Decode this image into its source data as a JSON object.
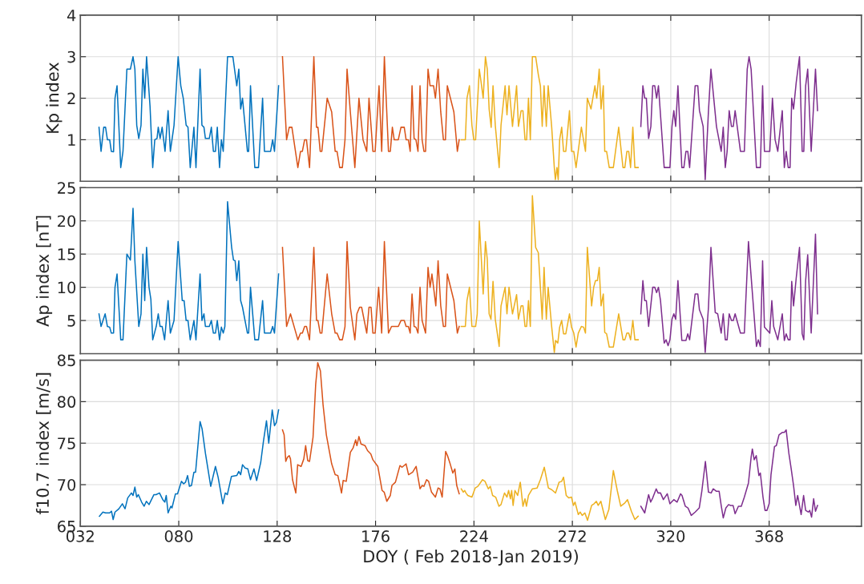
{
  "chart_data": [
    {
      "type": "line",
      "ylabel": "Kp index",
      "xlim": [
        32,
        413
      ],
      "xticks": [
        {
          "value": 80,
          "label": null
        },
        {
          "value": 128,
          "label": null
        },
        {
          "value": 176,
          "label": null
        },
        {
          "value": 224,
          "label": null
        },
        {
          "value": 272,
          "label": null
        },
        {
          "value": 320,
          "label": null
        },
        {
          "value": 368,
          "label": null
        }
      ],
      "ylim": [
        0,
        4
      ],
      "yticks": [
        1,
        2,
        3,
        4
      ],
      "grid": true,
      "tick_labels": "y",
      "series": [
        {
          "color": "#0072bd",
          "x": [
            41.1,
            42.1,
            43.4,
            44.3,
            45.2,
            46.3,
            47.1,
            48.2,
            48.9,
            49.9,
            51.7,
            52.8,
            54.7,
            56.4,
            57.7,
            58.6,
            59.5,
            60.5,
            61.6,
            62.5,
            63.4,
            64.3,
            66.0,
            67.3,
            68.3,
            69.4,
            70.0,
            70.9,
            71.9,
            73.3,
            74.8,
            75.9,
            77.7,
            79.7,
            81.0,
            82.2,
            83.6,
            84.5,
            85.6,
            87.4,
            88.4,
            90.4,
            91.3,
            92.3,
            93.0,
            94.9,
            95.9,
            96.9,
            97.9,
            98.8,
            99.9,
            100.8,
            101.7,
            103.8,
            106.4,
            108.3,
            109.3,
            110.2,
            111.1,
            113.5,
            114.1,
            115.0,
            117.1,
            118.9,
            120.9,
            121.8,
            124.8,
            125.8,
            126.7,
            128.7
          ],
          "values": [
            1.3,
            0.72,
            1.3,
            1.3,
            1.0,
            1.0,
            0.72,
            0.71,
            2.0,
            2.3,
            0.33,
            0.72,
            2.7,
            2.7,
            3.0,
            2.7,
            1.35,
            1.03,
            1.35,
            2.7,
            2.0,
            3.0,
            1.8,
            0.33,
            1.0,
            1.03,
            1.3,
            1.03,
            1.3,
            0.72,
            1.7,
            0.72,
            1.35,
            3.0,
            2.3,
            2.0,
            1.35,
            1.3,
            0.33,
            1.3,
            0.33,
            2.7,
            1.35,
            1.3,
            1.03,
            1.03,
            1.3,
            0.72,
            0.72,
            1.3,
            0.33,
            1.0,
            0.72,
            3.0,
            3.0,
            2.3,
            2.7,
            1.74,
            2.0,
            0.72,
            0.72,
            2.3,
            0.33,
            0.33,
            2.0,
            0.72,
            0.72,
            1.0,
            0.72,
            2.3
          ]
        },
        {
          "color": "#d95319",
          "x": [
            130.6,
            132.6,
            133.9,
            135.2,
            138.1,
            139.4,
            140.3,
            141.4,
            142.3,
            143.8,
            145.9,
            147.2,
            147.9,
            149.0,
            149.8,
            152.4,
            154.6,
            156.3,
            157.2,
            158.5,
            159.8,
            161.1,
            162.1,
            163.7,
            165.9,
            167.9,
            169.9,
            171.7,
            172.8,
            174.7,
            175.8,
            177.7,
            179.0,
            180.3,
            182.3,
            183.2,
            184.2,
            185.1,
            187.1,
            188.4,
            190.0,
            190.9,
            192.0,
            192.9,
            193.8,
            194.8,
            195.7,
            196.7,
            197.7,
            198.7,
            199.6,
            200.4,
            201.6,
            202.6,
            204.3,
            205.2,
            206.5,
            207.8,
            209.1,
            210.1,
            211.0,
            214.2,
            215.9,
            216.8
          ],
          "values": [
            3.0,
            1.0,
            1.3,
            1.3,
            0.33,
            0.72,
            0.72,
            1.0,
            1.0,
            0.33,
            3.0,
            1.3,
            1.3,
            0.72,
            0.72,
            2.0,
            1.67,
            0.72,
            0.72,
            0.33,
            0.33,
            1.0,
            2.7,
            1.67,
            0.33,
            2.0,
            1.0,
            0.72,
            2.0,
            0.72,
            0.72,
            2.3,
            0.72,
            3.0,
            0.72,
            0.72,
            1.3,
            1.0,
            1.0,
            1.3,
            1.3,
            1.0,
            1.0,
            0.72,
            2.3,
            1.03,
            1.0,
            0.72,
            2.3,
            1.0,
            0.72,
            0.72,
            2.7,
            2.3,
            2.3,
            2.0,
            2.7,
            1.67,
            1.0,
            1.0,
            2.3,
            1.67,
            0.72,
            1.0
          ]
        },
        {
          "color": "#edb120",
          "x": [
            217.8,
            219.8,
            220.6,
            221.8,
            223.0,
            223.9,
            224.8,
            226.6,
            227.5,
            228.5,
            229.6,
            230.5,
            231.4,
            232.4,
            233.3,
            234.4,
            236.3,
            237.2,
            239.2,
            240.1,
            241.1,
            242.8,
            244.8,
            245.7,
            247.0,
            247.9,
            248.9,
            249.7,
            250.6,
            251.5,
            252.5,
            254.1,
            255.4,
            256.4,
            257.3,
            258.2,
            259.3,
            260.2,
            261.9,
            263.2,
            263.7,
            264.5,
            265.1,
            265.8,
            266.8,
            267.7,
            268.8,
            270.6,
            271.6,
            272.7,
            273.8,
            276.4,
            278.4,
            279.3,
            281.1,
            283.0,
            283.9,
            285.1,
            286.0,
            287.1,
            287.8,
            288.7,
            290.0,
            292.0,
            294.6,
            296.7,
            297.6,
            298.6,
            299.5,
            300.4,
            301.5,
            302.5,
            304.1
          ],
          "values": [
            1.0,
            1.0,
            2.0,
            2.3,
            1.35,
            1.0,
            1.0,
            2.7,
            2.38,
            2.0,
            3.0,
            2.7,
            1.74,
            1.3,
            2.3,
            1.35,
            0.33,
            1.35,
            2.3,
            1.6,
            2.3,
            1.32,
            2.3,
            1.32,
            1.7,
            1.7,
            1.0,
            1.0,
            2.0,
            1.0,
            3.0,
            3.0,
            2.57,
            2.3,
            1.32,
            2.3,
            1.32,
            2.3,
            1.32,
            0.33,
            0.04,
            0.33,
            0.04,
            1.0,
            1.3,
            0.72,
            0.72,
            1.7,
            0.72,
            0.72,
            0.33,
            1.3,
            0.72,
            2.0,
            1.74,
            2.3,
            2.0,
            2.7,
            1.74,
            2.3,
            0.72,
            0.72,
            0.33,
            0.33,
            1.3,
            0.33,
            0.33,
            0.72,
            0.72,
            0.33,
            1.3,
            0.33,
            0.33
          ]
        },
        {
          "color": "#7e2f8e",
          "x": [
            305.4,
            306.4,
            307.3,
            308.1,
            309.2,
            310.3,
            311.2,
            312.2,
            313.1,
            314.0,
            316.8,
            319.6,
            320.6,
            321.5,
            322.4,
            323.5,
            325.4,
            326.4,
            327.4,
            328.3,
            329.2,
            331.9,
            333.2,
            334.0,
            335.8,
            336.8,
            338.4,
            339.6,
            342.3,
            344.6,
            345.6,
            346.6,
            347.5,
            348.5,
            349.6,
            350.5,
            351.4,
            354.0,
            355.9,
            357.3,
            358.2,
            359.2,
            361.8,
            363.7,
            364.8,
            365.7,
            368.3,
            369.6,
            370.9,
            372.2,
            374.4,
            375.4,
            376.3,
            377.3,
            378.2,
            379.0,
            379.9,
            381.2,
            382.8,
            384.1,
            384.9,
            385.8,
            386.8,
            388.5,
            390.6,
            391.6
          ],
          "values": [
            1.32,
            2.3,
            2.0,
            2.0,
            1.03,
            1.32,
            2.3,
            2.3,
            2.0,
            2.3,
            0.33,
            0.33,
            1.32,
            1.7,
            1.32,
            2.3,
            0.33,
            0.33,
            0.72,
            0.72,
            0.33,
            2.3,
            2.3,
            1.7,
            1.32,
            0.04,
            1.7,
            2.7,
            1.32,
            0.72,
            1.3,
            0.33,
            0.72,
            1.7,
            1.32,
            1.32,
            1.7,
            0.72,
            0.72,
            2.7,
            3.0,
            2.7,
            0.33,
            0.33,
            2.3,
            0.72,
            0.72,
            2.0,
            1.0,
            0.72,
            1.7,
            0.33,
            0.72,
            0.33,
            0.33,
            2.0,
            1.74,
            2.38,
            3.0,
            0.72,
            0.72,
            2.3,
            2.7,
            0.72,
            2.7,
            1.7
          ]
        }
      ]
    },
    {
      "type": "line",
      "ylabel": "Ap index [nT]",
      "xlim": [
        32,
        413
      ],
      "xticks": [
        {
          "value": 80,
          "label": null
        },
        {
          "value": 128,
          "label": null
        },
        {
          "value": 176,
          "label": null
        },
        {
          "value": 224,
          "label": null
        },
        {
          "value": 272,
          "label": null
        },
        {
          "value": 320,
          "label": null
        },
        {
          "value": 368,
          "label": null
        }
      ],
      "ylim": [
        0,
        25
      ],
      "yticks": [
        5,
        10,
        15,
        20,
        25
      ],
      "grid": true,
      "tick_labels": "y",
      "series": [
        {
          "color": "#0072bd",
          "x": [
            41.1,
            42.1,
            44.1,
            45.2,
            46.3,
            47.1,
            48.2,
            48.9,
            49.9,
            51.7,
            52.8,
            54.7,
            56.4,
            57.7,
            58.6,
            60.5,
            61.6,
            62.5,
            63.4,
            64.3,
            65.5,
            66.4,
            67.3,
            69.0,
            70.0,
            70.9,
            71.9,
            73.1,
            74.8,
            75.9,
            77.7,
            79.7,
            81.7,
            82.6,
            83.6,
            84.5,
            85.6,
            87.4,
            88.4,
            90.4,
            91.3,
            92.3,
            93.0,
            94.9,
            95.9,
            96.9,
            97.9,
            98.8,
            99.9,
            100.8,
            101.7,
            102.5,
            103.8,
            105.8,
            106.7,
            107.5,
            108.3,
            109.3,
            110.2,
            111.1,
            113.5,
            114.1,
            115.0,
            117.1,
            118.9,
            120.9,
            121.8,
            124.8,
            125.8,
            126.7,
            128.7
          ],
          "values": [
            6.0,
            4.1,
            6.0,
            4.1,
            4.0,
            3.1,
            3.1,
            10.0,
            12.0,
            2.1,
            2.1,
            15.0,
            14.1,
            21.9,
            14.0,
            4.1,
            6.0,
            15.0,
            8.0,
            16.0,
            10.0,
            8.2,
            2.1,
            4.1,
            6.0,
            4.1,
            4.1,
            2.1,
            8.0,
            3.1,
            5.0,
            16.9,
            8.0,
            8.0,
            5.0,
            5.0,
            2.1,
            5.0,
            2.1,
            12.0,
            5.0,
            6.0,
            4.1,
            4.1,
            5.0,
            3.1,
            3.1,
            5.0,
            2.1,
            4.0,
            3.1,
            4.1,
            22.9,
            16.0,
            14.1,
            14.0,
            11.0,
            14.0,
            8.0,
            7.0,
            3.1,
            3.1,
            10.0,
            2.1,
            2.1,
            8.0,
            3.1,
            3.1,
            4.1,
            3.1,
            12.0
          ]
        },
        {
          "color": "#d95319",
          "x": [
            130.6,
            132.6,
            134.5,
            138.1,
            139.4,
            140.3,
            141.4,
            142.3,
            143.8,
            145.9,
            147.2,
            147.9,
            149.0,
            149.8,
            152.4,
            154.6,
            156.3,
            157.2,
            158.5,
            159.8,
            161.1,
            162.1,
            163.7,
            165.9,
            166.9,
            168.2,
            169.2,
            171.7,
            172.8,
            173.8,
            174.7,
            175.8,
            177.5,
            179.0,
            180.3,
            182.3,
            183.8,
            187.1,
            188.4,
            190.0,
            190.9,
            192.0,
            192.9,
            193.8,
            194.8,
            195.7,
            196.7,
            197.7,
            198.7,
            200.4,
            201.6,
            202.6,
            203.5,
            204.3,
            205.4,
            206.5,
            207.8,
            209.1,
            210.1,
            211.0,
            214.2,
            215.9,
            216.8
          ],
          "values": [
            16.0,
            4.1,
            6.0,
            2.1,
            3.1,
            3.1,
            4.1,
            4.1,
            2.1,
            16.0,
            5.0,
            5.0,
            3.1,
            3.1,
            12.0,
            6.0,
            3.1,
            3.1,
            2.1,
            2.1,
            4.1,
            16.9,
            7.0,
            2.1,
            6.0,
            7.0,
            7.0,
            3.1,
            7.0,
            7.0,
            3.1,
            3.1,
            10.0,
            3.1,
            16.9,
            3.1,
            4.1,
            4.1,
            5.0,
            5.0,
            4.1,
            4.1,
            3.1,
            9.0,
            4.1,
            4.0,
            3.1,
            10.0,
            5.0,
            3.1,
            13.0,
            10.0,
            12.0,
            10.0,
            7.2,
            14.0,
            7.2,
            4.1,
            4.1,
            12.0,
            8.0,
            3.1,
            4.1
          ]
        },
        {
          "color": "#edb120",
          "x": [
            217.8,
            219.8,
            220.6,
            221.8,
            223.0,
            224.8,
            225.6,
            226.6,
            228.5,
            229.6,
            230.5,
            231.4,
            232.3,
            233.3,
            234.4,
            236.3,
            237.2,
            239.2,
            240.1,
            241.1,
            242.8,
            244.8,
            245.7,
            247.0,
            247.9,
            248.9,
            249.7,
            250.6,
            251.5,
            252.5,
            254.1,
            255.4,
            256.4,
            257.3,
            258.2,
            259.3,
            260.2,
            261.9,
            263.2,
            263.8,
            264.9,
            265.8,
            266.8,
            267.7,
            268.8,
            270.6,
            271.6,
            272.7,
            273.8,
            274.9,
            276.4,
            277.5,
            278.4,
            279.3,
            281.4,
            282.4,
            283.3,
            284.2,
            285.1,
            286.0,
            287.1,
            287.8,
            288.7,
            290.0,
            292.0,
            294.6,
            296.7,
            297.6,
            298.6,
            299.5,
            300.4,
            301.5,
            302.5,
            304.1
          ],
          "values": [
            4.1,
            4.1,
            8.0,
            10.0,
            4.1,
            4.1,
            6.0,
            20.0,
            9.0,
            16.9,
            14.2,
            6.0,
            5.2,
            10.9,
            5.2,
            1.1,
            7.2,
            10.0,
            6.0,
            10.0,
            6.0,
            8.9,
            5.2,
            7.2,
            7.2,
            4.1,
            4.1,
            8.0,
            4.1,
            23.8,
            16.0,
            15.2,
            10.0,
            5.2,
            13.0,
            5.2,
            10.0,
            4.1,
            0.2,
            2.0,
            1.6,
            4.0,
            5.0,
            3.0,
            3.0,
            6.0,
            4.0,
            3.1,
            1.0,
            3.1,
            4.1,
            4.0,
            3.1,
            16.0,
            7.2,
            10.0,
            11.0,
            11.0,
            13.0,
            7.2,
            9.0,
            3.2,
            3.0,
            1.0,
            1.0,
            6.0,
            2.1,
            2.1,
            3.1,
            3.1,
            2.1,
            5.0,
            2.1,
            2.1
          ]
        },
        {
          "color": "#7e2f8e",
          "x": [
            305.4,
            306.4,
            307.3,
            308.1,
            309.2,
            311.2,
            312.2,
            313.1,
            314.0,
            315.0,
            316.8,
            317.7,
            318.7,
            319.6,
            320.6,
            321.5,
            322.4,
            323.5,
            325.4,
            327.4,
            328.3,
            329.2,
            331.9,
            333.2,
            334.0,
            335.8,
            336.8,
            338.4,
            339.6,
            341.7,
            342.9,
            344.6,
            345.6,
            346.6,
            347.5,
            348.5,
            349.6,
            350.5,
            351.4,
            354.0,
            355.9,
            357.9,
            361.8,
            362.7,
            363.7,
            364.8,
            365.7,
            368.3,
            369.3,
            370.2,
            372.2,
            374.4,
            375.4,
            376.3,
            377.3,
            378.2,
            379.0,
            379.9,
            381.2,
            382.8,
            384.1,
            384.9,
            385.8,
            386.8,
            388.5,
            390.6,
            391.6
          ],
          "values": [
            6.0,
            11.0,
            8.0,
            8.0,
            4.1,
            10.0,
            10.0,
            9.2,
            10.0,
            8.0,
            1.6,
            2.1,
            1.2,
            2.1,
            5.2,
            6.0,
            5.2,
            11.0,
            2.0,
            2.0,
            3.0,
            2.1,
            9.0,
            9.0,
            6.6,
            5.2,
            0.2,
            7.0,
            16.0,
            6.2,
            6.0,
            3.1,
            6.0,
            2.1,
            2.1,
            6.0,
            5.0,
            5.0,
            6.0,
            3.1,
            3.1,
            16.9,
            1.1,
            2.1,
            1.1,
            14.0,
            4.0,
            3.1,
            8.0,
            4.1,
            2.1,
            6.0,
            2.0,
            3.0,
            2.1,
            2.1,
            10.9,
            7.2,
            11.4,
            16.0,
            3.0,
            2.1,
            11.0,
            14.9,
            3.1,
            18.0,
            6.0
          ]
        }
      ]
    },
    {
      "type": "line",
      "ylabel": "f10.7 index [m/s]",
      "xlabel": "DOY ( Feb 2018-Jan 2019)",
      "xlim": [
        32,
        413
      ],
      "xticks": [
        {
          "value": 32,
          "label": "032"
        },
        {
          "value": 80,
          "label": "080"
        },
        128,
        176,
        224,
        272,
        320,
        368
      ],
      "ylim": [
        65,
        85
      ],
      "yticks": [
        65,
        70,
        75,
        80,
        85
      ],
      "grid": true,
      "series": [
        {
          "color": "#0072bd",
          "x": [
            41.3,
            43.0,
            44.3,
            46.3,
            47.2,
            48.0,
            48.9,
            50.8,
            52.5,
            53.8,
            55.1,
            56.9,
            57.7,
            58.6,
            59.5,
            60.3,
            61.9,
            63.1,
            64.2,
            65.5,
            67.9,
            68.9,
            70.6,
            72.2,
            73.2,
            73.9,
            74.8,
            76.1,
            76.7,
            78.4,
            79.4,
            81.3,
            82.4,
            83.3,
            84.3,
            85.2,
            86.2,
            87.4,
            88.2,
            90.4,
            91.4,
            93.0,
            95.6,
            97.9,
            99.2,
            101.5,
            102.7,
            103.7,
            105.7,
            108.3,
            109.3,
            110.2,
            111.1,
            112.4,
            113.7,
            115.0,
            116.7,
            118.0,
            120.0,
            121.3,
            122.8,
            123.9,
            125.6,
            126.7,
            127.6,
            128.7
          ],
          "values": [
            66.2,
            66.7,
            66.6,
            66.6,
            66.8,
            65.8,
            66.7,
            67.1,
            67.7,
            67.1,
            68.4,
            69.0,
            68.7,
            69.7,
            68.5,
            68.8,
            67.9,
            67.4,
            68.0,
            67.6,
            68.8,
            68.8,
            69.0,
            68.2,
            67.9,
            68.7,
            66.6,
            67.4,
            67.2,
            68.9,
            68.9,
            70.4,
            70.1,
            70.3,
            71.1,
            69.8,
            69.9,
            71.5,
            71.5,
            77.6,
            76.7,
            73.8,
            69.8,
            72.2,
            70.9,
            67.7,
            69.0,
            68.8,
            71.0,
            71.1,
            71.6,
            71.2,
            72.4,
            72.0,
            71.9,
            70.6,
            71.9,
            70.5,
            72.7,
            75.2,
            77.7,
            75.0,
            79.0,
            77.1,
            77.5,
            79.0
          ]
        },
        {
          "color": "#d95319",
          "x": [
            130.6,
            131.4,
            132.2,
            133.0,
            133.9,
            134.5,
            135.5,
            137.1,
            138.0,
            139.7,
            141.0,
            141.9,
            142.9,
            143.8,
            145.5,
            146.8,
            147.8,
            149.1,
            150.4,
            152.0,
            154.6,
            156.3,
            157.6,
            159.4,
            160.2,
            161.7,
            163.7,
            165.0,
            166.3,
            166.9,
            167.9,
            168.9,
            170.9,
            172.1,
            173.7,
            174.7,
            177.1,
            179.2,
            180.2,
            181.5,
            183.2,
            184.0,
            185.7,
            187.9,
            188.9,
            190.9,
            192.1,
            194.1,
            195.8,
            196.7,
            197.7,
            198.7,
            199.6,
            200.9,
            201.9,
            203.3,
            205.2,
            206.5,
            207.4,
            208.5,
            210.2,
            211.1,
            212.4,
            213.7,
            214.7,
            215.6,
            216.8
          ],
          "values": [
            76.6,
            76.0,
            72.8,
            73.3,
            73.5,
            73.1,
            70.6,
            69.0,
            72.4,
            72.2,
            73.1,
            74.7,
            72.9,
            72.8,
            75.7,
            82.1,
            84.7,
            83.7,
            79.6,
            76.0,
            72.5,
            71.2,
            71.1,
            69.0,
            70.5,
            70.4,
            73.9,
            74.4,
            75.4,
            74.7,
            75.8,
            74.9,
            74.7,
            74.1,
            73.7,
            73.0,
            72.2,
            69.3,
            69.1,
            68.0,
            68.7,
            69.9,
            70.3,
            72.3,
            72.1,
            72.5,
            71.2,
            71.5,
            72.2,
            70.9,
            69.5,
            69.9,
            69.8,
            70.6,
            70.4,
            69.1,
            68.5,
            69.6,
            69.5,
            68.5,
            74.0,
            73.5,
            72.5,
            71.4,
            71.9,
            69.9,
            68.9
          ]
        },
        {
          "color": "#edb120",
          "x": [
            217.8,
            218.8,
            219.5,
            220.1,
            221.0,
            223.0,
            224.6,
            225.9,
            228.2,
            229.4,
            231.0,
            232.0,
            233.1,
            234.6,
            236.2,
            237.2,
            238.9,
            240.1,
            240.9,
            241.8,
            242.4,
            243.1,
            244.0,
            245.3,
            246.6,
            247.9,
            248.9,
            249.6,
            250.6,
            252.5,
            254.8,
            256.4,
            258.3,
            260.3,
            261.9,
            263.8,
            265.5,
            266.8,
            267.7,
            269.0,
            270.3,
            271.6,
            272.5,
            273.3,
            274.9,
            275.8,
            276.8,
            278.1,
            279.4,
            281.4,
            282.6,
            283.7,
            284.6,
            285.9,
            288.1,
            289.8,
            292.0,
            293.9,
            295.6,
            297.6,
            298.9,
            300.8,
            302.5,
            304.1
          ],
          "values": [
            69.5,
            69.1,
            69.3,
            69.0,
            68.7,
            68.5,
            69.6,
            69.8,
            70.6,
            70.4,
            69.5,
            69.8,
            68.7,
            68.5,
            67.4,
            67.6,
            69.0,
            68.5,
            69.3,
            68.3,
            69.3,
            67.5,
            69.3,
            68.7,
            70.3,
            67.4,
            68.3,
            67.4,
            68.7,
            69.5,
            69.6,
            70.6,
            72.1,
            69.6,
            69.4,
            69.0,
            70.3,
            70.4,
            70.9,
            68.7,
            68.4,
            68.5,
            67.5,
            67.9,
            66.4,
            66.7,
            66.3,
            66.6,
            65.7,
            67.5,
            67.7,
            68.0,
            67.5,
            68.0,
            65.8,
            67.0,
            71.7,
            69.3,
            67.4,
            67.8,
            68.2,
            66.8,
            65.8,
            66.2
          ]
        },
        {
          "color": "#7e2f8e",
          "x": [
            305.4,
            307.3,
            309.2,
            310.2,
            311.2,
            312.9,
            313.8,
            315.0,
            316.4,
            318.3,
            319.6,
            321.5,
            323.1,
            324.8,
            325.5,
            327.1,
            328.4,
            330.0,
            331.9,
            333.9,
            335.2,
            336.9,
            338.4,
            339.7,
            340.7,
            342.3,
            343.6,
            344.6,
            345.6,
            346.9,
            348.2,
            349.2,
            350.4,
            351.4,
            353.0,
            354.4,
            355.9,
            357.9,
            359.2,
            359.8,
            360.7,
            361.7,
            363.0,
            363.7,
            365.0,
            366.0,
            366.9,
            368.0,
            368.9,
            370.6,
            371.5,
            372.8,
            374.5,
            375.4,
            376.3,
            377.6,
            378.7,
            379.9,
            381.0,
            381.9,
            383.6,
            384.8,
            385.8,
            387.1,
            387.8,
            388.7,
            389.7,
            390.6,
            391.6
          ],
          "values": [
            67.4,
            66.6,
            68.8,
            67.9,
            68.4,
            69.5,
            69.0,
            69.0,
            68.2,
            68.9,
            67.7,
            68.2,
            67.9,
            68.9,
            68.7,
            67.4,
            67.2,
            66.3,
            66.7,
            67.2,
            69.3,
            72.8,
            69.1,
            69.0,
            69.5,
            69.2,
            69.2,
            67.5,
            66.0,
            67.2,
            67.6,
            67.5,
            67.5,
            66.5,
            67.4,
            67.4,
            68.5,
            70.2,
            73.3,
            74.3,
            73.0,
            73.5,
            71.1,
            71.4,
            68.5,
            66.9,
            66.9,
            67.7,
            71.2,
            74.6,
            74.7,
            76.0,
            76.3,
            76.3,
            76.6,
            73.8,
            72.0,
            69.9,
            67.5,
            68.7,
            66.4,
            68.7,
            66.9,
            66.7,
            66.9,
            66.1,
            68.3,
            66.8,
            67.5
          ]
        }
      ]
    }
  ]
}
